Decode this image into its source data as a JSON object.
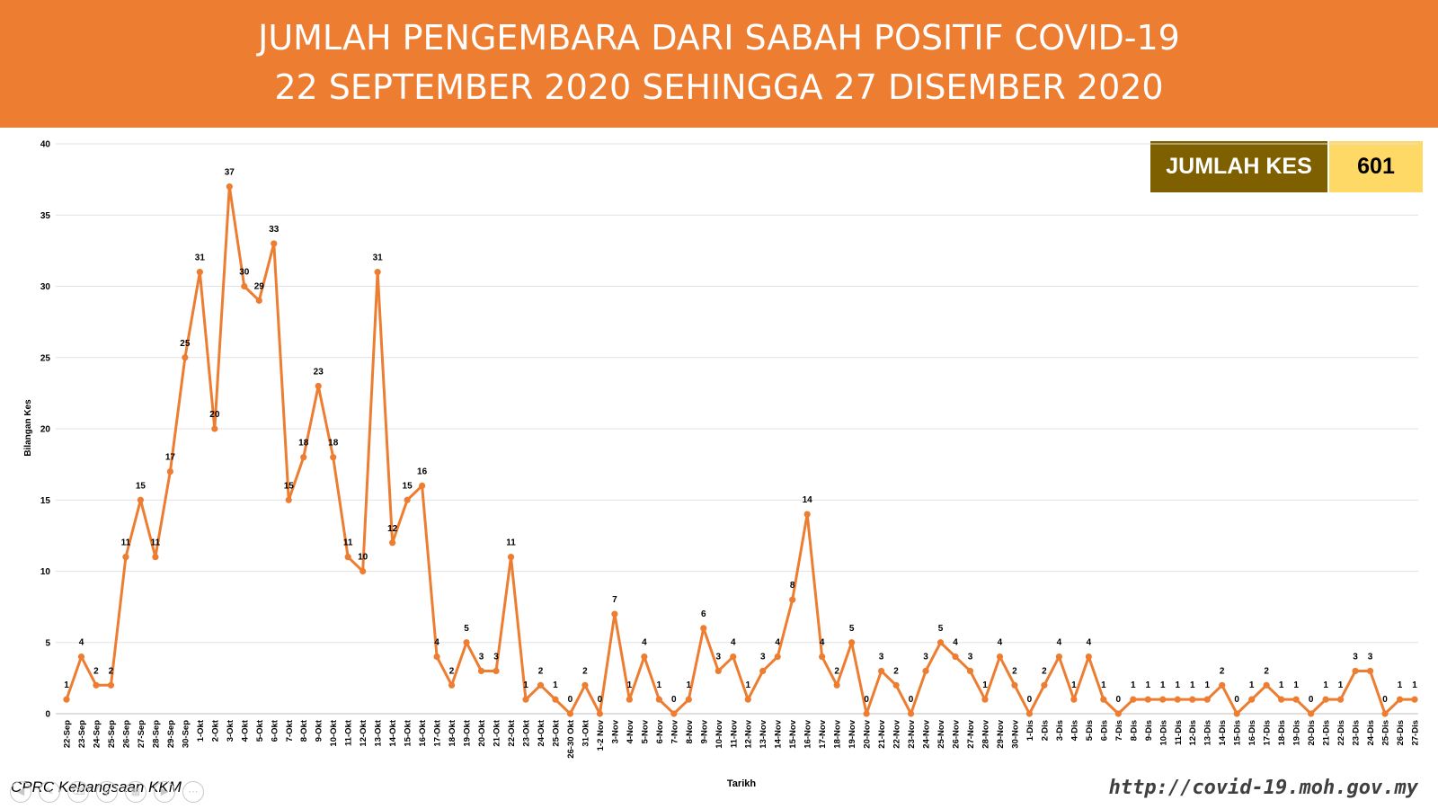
{
  "header": {
    "title_line1": "JUMLAH PENGEMBARA DARI SABAH POSITIF COVID-19",
    "title_line2": "22 SEPTEMBER 2020 SEHINGGA 27 DISEMBER 2020"
  },
  "total_box": {
    "label": "JUMLAH KES",
    "value": "601"
  },
  "footer": {
    "source": "CPRC Kebangsaan KKM",
    "website": "http://covid-19.moh.gov.my"
  },
  "colors": {
    "banner": "#ed7d31",
    "line": "#ed7d31",
    "total_label_bg": "#7f6000",
    "total_value_bg": "#ffd966"
  },
  "chart_data": {
    "type": "line",
    "xlabel": "Tarikh",
    "ylabel": "Bilangan Kes",
    "ylim": [
      0,
      40
    ],
    "yticks": [
      0,
      5,
      10,
      15,
      20,
      25,
      30,
      35,
      40
    ],
    "grid": true,
    "data_labels": true,
    "categories": [
      "22-Sep",
      "23-Sep",
      "24-Sep",
      "25-Sep",
      "26-Sep",
      "27-Sep",
      "28-Sep",
      "29-Sep",
      "30-Sep",
      "1-Okt",
      "2-Okt",
      "3-Okt",
      "4-Okt",
      "5-Okt",
      "6-Okt",
      "7-Okt",
      "8-Okt",
      "9-Okt",
      "10-Okt",
      "11-Okt",
      "12-Okt",
      "13-Okt",
      "14-Okt",
      "15-Okt",
      "16-Okt",
      "17-Okt",
      "18-Okt",
      "19-Okt",
      "20-Okt",
      "21-Okt",
      "22-Okt",
      "23-Okt",
      "24-Okt",
      "25-Okt",
      "26-30 Okt",
      "31-Okt",
      "1-2 Nov",
      "3-Nov",
      "4-Nov",
      "5-Nov",
      "6-Nov",
      "7-Nov",
      "8-Nov",
      "9-Nov",
      "10-Nov",
      "11-Nov",
      "12-Nov",
      "13-Nov",
      "14-Nov",
      "15-Nov",
      "16-Nov",
      "17-Nov",
      "18-Nov",
      "19-Nov",
      "20-Nov",
      "21-Nov",
      "22-Nov",
      "23-Nov",
      "24-Nov",
      "25-Nov",
      "26-Nov",
      "27-Nov",
      "28-Nov",
      "29-Nov",
      "30-Nov",
      "1-Dis",
      "2-Dis",
      "3-Dis",
      "4-Dis",
      "5-Dis",
      "6-Dis",
      "7-Dis",
      "8-Dis",
      "9-Dis",
      "10-Dis",
      "11-Dis",
      "12-Dis",
      "13-Dis",
      "14-Dis",
      "15-Dis",
      "16-Dis",
      "17-Dis",
      "18-Dis",
      "19-Dis",
      "20-Dis",
      "21-Dis",
      "22-Dis",
      "23-Dis",
      "24-Dis",
      "25-Dis",
      "26-Dis",
      "27-Dis"
    ],
    "values": [
      1,
      4,
      2,
      2,
      11,
      15,
      11,
      17,
      25,
      31,
      20,
      37,
      30,
      29,
      33,
      15,
      18,
      23,
      18,
      11,
      10,
      31,
      12,
      15,
      16,
      4,
      2,
      5,
      3,
      3,
      11,
      1,
      2,
      1,
      0,
      2,
      0,
      7,
      1,
      4,
      1,
      0,
      1,
      6,
      3,
      4,
      1,
      3,
      4,
      8,
      14,
      4,
      2,
      5,
      0,
      3,
      2,
      0,
      3,
      5,
      4,
      3,
      1,
      4,
      2,
      0,
      2,
      4,
      1,
      4,
      1,
      0,
      1,
      1,
      1,
      1,
      1,
      1,
      2,
      0,
      1,
      2,
      1,
      1,
      0,
      1,
      1,
      3,
      3,
      0,
      1,
      1
    ]
  }
}
